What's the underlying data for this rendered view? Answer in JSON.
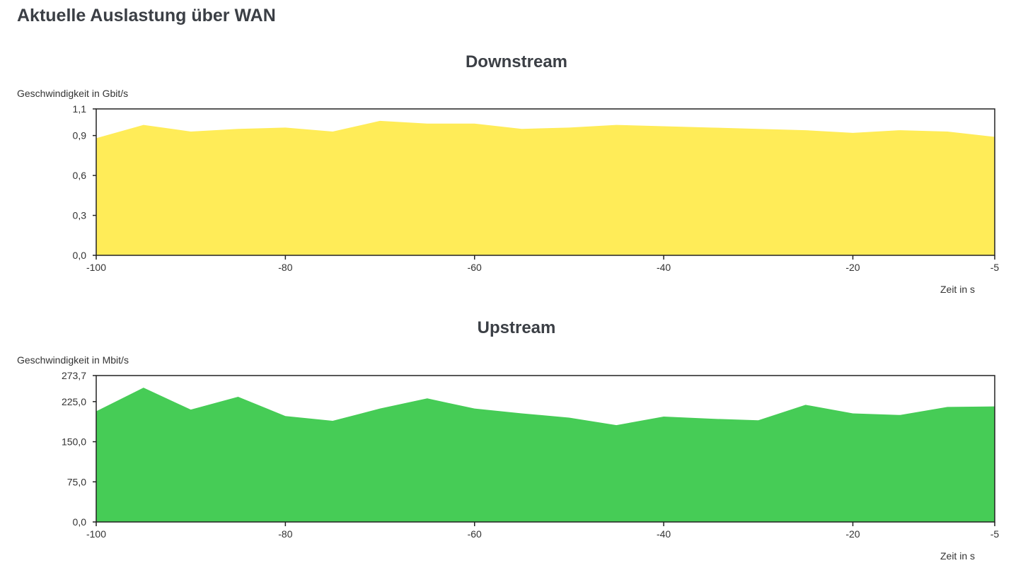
{
  "page": {
    "title": "Aktuelle Auslastung über WAN"
  },
  "chart_data": [
    {
      "id": "downstream",
      "type": "area",
      "title": "Downstream",
      "ylabel": "Geschwindigkeit in Gbit/s",
      "xlabel": "Zeit in s",
      "xlim": [
        -100,
        -5
      ],
      "ylim": [
        0,
        1.1
      ],
      "xticks": [
        -100,
        -80,
        -60,
        -40,
        -20,
        -5
      ],
      "yticks": [
        0.0,
        0.3,
        0.6,
        0.9,
        1.1
      ],
      "ytick_labels": [
        "0,0",
        "0,3",
        "0,6",
        "0,9",
        "1,1"
      ],
      "color": "#ffec58",
      "x": [
        -100,
        -95,
        -90,
        -85,
        -80,
        -75,
        -70,
        -65,
        -60,
        -55,
        -50,
        -45,
        -40,
        -35,
        -30,
        -25,
        -20,
        -15,
        -10,
        -5
      ],
      "values": [
        0.88,
        0.98,
        0.93,
        0.95,
        0.96,
        0.93,
        1.01,
        0.99,
        0.99,
        0.95,
        0.96,
        0.98,
        0.97,
        0.96,
        0.95,
        0.94,
        0.92,
        0.94,
        0.93,
        0.89
      ],
      "grid": false,
      "legend": "none"
    },
    {
      "id": "upstream",
      "type": "area",
      "title": "Upstream",
      "ylabel": "Geschwindigkeit in Mbit/s",
      "xlabel": "Zeit in s",
      "xlim": [
        -100,
        -5
      ],
      "ylim": [
        0,
        273.7
      ],
      "xticks": [
        -100,
        -80,
        -60,
        -40,
        -20,
        -5
      ],
      "yticks": [
        0.0,
        75.0,
        150.0,
        225.0,
        273.7
      ],
      "ytick_labels": [
        "0,0",
        "75,0",
        "150,0",
        "225,0",
        "273,7"
      ],
      "color": "#46cc56",
      "x": [
        -100,
        -95,
        -90,
        -85,
        -80,
        -75,
        -70,
        -65,
        -60,
        -55,
        -50,
        -45,
        -40,
        -35,
        -30,
        -25,
        -20,
        -15,
        -10,
        -5
      ],
      "values": [
        207,
        251,
        210,
        234,
        198,
        189,
        212,
        231,
        212,
        203,
        195,
        181,
        197,
        193,
        190,
        219,
        203,
        200,
        215,
        216
      ],
      "grid": false,
      "legend": "none"
    }
  ]
}
